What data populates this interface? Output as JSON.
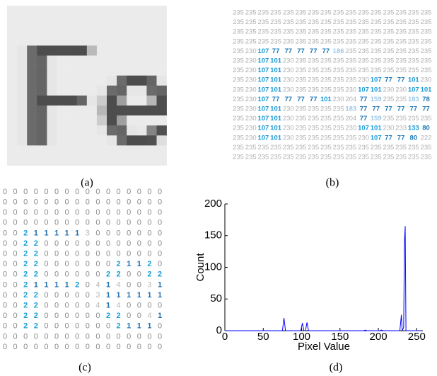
{
  "captions": [
    "(a)",
    "(b)",
    "(c)",
    "(d)"
  ],
  "pixel_grid": [
    [
      235,
      235,
      235,
      235,
      235,
      235,
      235,
      235,
      235,
      235,
      235,
      235,
      235,
      235,
      235,
      235
    ],
    [
      235,
      235,
      235,
      235,
      235,
      235,
      235,
      235,
      235,
      235,
      235,
      235,
      235,
      235,
      235,
      235
    ],
    [
      235,
      235,
      235,
      235,
      235,
      235,
      235,
      235,
      235,
      235,
      235,
      235,
      235,
      235,
      235,
      235
    ],
    [
      235,
      235,
      235,
      235,
      235,
      235,
      235,
      235,
      235,
      235,
      235,
      235,
      235,
      235,
      235,
      235
    ],
    [
      235,
      230,
      107,
      77,
      77,
      77,
      77,
      77,
      186,
      235,
      235,
      235,
      235,
      235,
      235,
      235
    ],
    [
      235,
      230,
      107,
      101,
      230,
      235,
      235,
      235,
      235,
      235,
      235,
      235,
      235,
      235,
      235,
      235
    ],
    [
      235,
      230,
      107,
      101,
      230,
      235,
      235,
      235,
      235,
      235,
      235,
      235,
      235,
      235,
      235,
      235
    ],
    [
      235,
      230,
      107,
      101,
      230,
      235,
      235,
      235,
      235,
      235,
      230,
      107,
      77,
      77,
      101,
      230
    ],
    [
      235,
      230,
      107,
      101,
      230,
      235,
      235,
      235,
      235,
      230,
      107,
      101,
      230,
      230,
      107,
      101
    ],
    [
      235,
      230,
      107,
      77,
      77,
      77,
      77,
      101,
      230,
      204,
      77,
      159,
      235,
      235,
      183,
      78
    ],
    [
      235,
      230,
      107,
      101,
      230,
      235,
      235,
      235,
      235,
      183,
      77,
      77,
      77,
      77,
      77,
      77
    ],
    [
      235,
      230,
      107,
      101,
      230,
      235,
      235,
      235,
      235,
      204,
      77,
      159,
      235,
      235,
      235,
      235
    ],
    [
      235,
      230,
      107,
      101,
      230,
      235,
      235,
      235,
      235,
      230,
      107,
      101,
      230,
      233,
      133,
      80
    ],
    [
      235,
      230,
      107,
      101,
      230,
      235,
      235,
      235,
      235,
      235,
      230,
      107,
      77,
      77,
      80,
      222
    ],
    [
      235,
      235,
      235,
      235,
      235,
      235,
      235,
      235,
      235,
      235,
      235,
      235,
      235,
      235,
      235,
      235
    ],
    [
      235,
      235,
      235,
      235,
      235,
      235,
      235,
      235,
      235,
      235,
      235,
      235,
      235,
      235,
      235,
      235
    ]
  ],
  "code_grid": [
    [
      0,
      0,
      0,
      0,
      0,
      0,
      0,
      0,
      0,
      0,
      0,
      0,
      0,
      0,
      0,
      0
    ],
    [
      0,
      0,
      0,
      0,
      0,
      0,
      0,
      0,
      0,
      0,
      0,
      0,
      0,
      0,
      0,
      0
    ],
    [
      0,
      0,
      0,
      0,
      0,
      0,
      0,
      0,
      0,
      0,
      0,
      0,
      0,
      0,
      0,
      0
    ],
    [
      0,
      0,
      0,
      0,
      0,
      0,
      0,
      0,
      0,
      0,
      0,
      0,
      0,
      0,
      0,
      0
    ],
    [
      0,
      0,
      2,
      1,
      1,
      1,
      1,
      1,
      3,
      0,
      0,
      0,
      0,
      0,
      0,
      0
    ],
    [
      0,
      0,
      2,
      2,
      0,
      0,
      0,
      0,
      0,
      0,
      0,
      0,
      0,
      0,
      0,
      0
    ],
    [
      0,
      0,
      2,
      2,
      0,
      0,
      0,
      0,
      0,
      0,
      0,
      0,
      0,
      0,
      0,
      0
    ],
    [
      0,
      0,
      2,
      2,
      0,
      0,
      0,
      0,
      0,
      0,
      0,
      2,
      1,
      1,
      2,
      0
    ],
    [
      0,
      0,
      2,
      2,
      0,
      0,
      0,
      0,
      0,
      0,
      2,
      2,
      0,
      0,
      2,
      2
    ],
    [
      0,
      0,
      2,
      1,
      1,
      1,
      1,
      2,
      0,
      4,
      1,
      4,
      0,
      0,
      3,
      1
    ],
    [
      0,
      0,
      2,
      2,
      0,
      0,
      0,
      0,
      0,
      3,
      1,
      1,
      1,
      1,
      1,
      1
    ],
    [
      0,
      0,
      2,
      2,
      0,
      0,
      0,
      0,
      0,
      4,
      1,
      4,
      0,
      0,
      0,
      0
    ],
    [
      0,
      0,
      2,
      2,
      0,
      0,
      0,
      0,
      0,
      0,
      2,
      2,
      0,
      0,
      4,
      1
    ],
    [
      0,
      0,
      2,
      2,
      0,
      0,
      0,
      0,
      0,
      0,
      0,
      2,
      1,
      1,
      1,
      0
    ],
    [
      0,
      0,
      0,
      0,
      0,
      0,
      0,
      0,
      0,
      0,
      0,
      0,
      0,
      0,
      0,
      0
    ],
    [
      0,
      0,
      0,
      0,
      0,
      0,
      0,
      0,
      0,
      0,
      0,
      0,
      0,
      0,
      0,
      0
    ]
  ],
  "chart_data": {
    "type": "line",
    "x_label": "Pixel Value",
    "y_label": "Count",
    "x": [
      0,
      75,
      77,
      79,
      99,
      101,
      103,
      105,
      107,
      109,
      181,
      183,
      185,
      202,
      204,
      206,
      228,
      230,
      231,
      233,
      234,
      235,
      236,
      255
    ],
    "series": [
      {
        "color": "#0000ff",
        "values": [
          0,
          0,
          20,
          0,
          0,
          12,
          0,
          0,
          13,
          0,
          0,
          1,
          0,
          0,
          1,
          0,
          0,
          25,
          0,
          5,
          138,
          165,
          0,
          0
        ]
      }
    ],
    "xlim": [
      0,
      258
    ],
    "xticks": [
      0,
      50,
      100,
      150,
      200,
      250
    ],
    "ylim": [
      0,
      200
    ],
    "yticks": [
      0,
      50,
      100,
      150,
      200
    ]
  }
}
